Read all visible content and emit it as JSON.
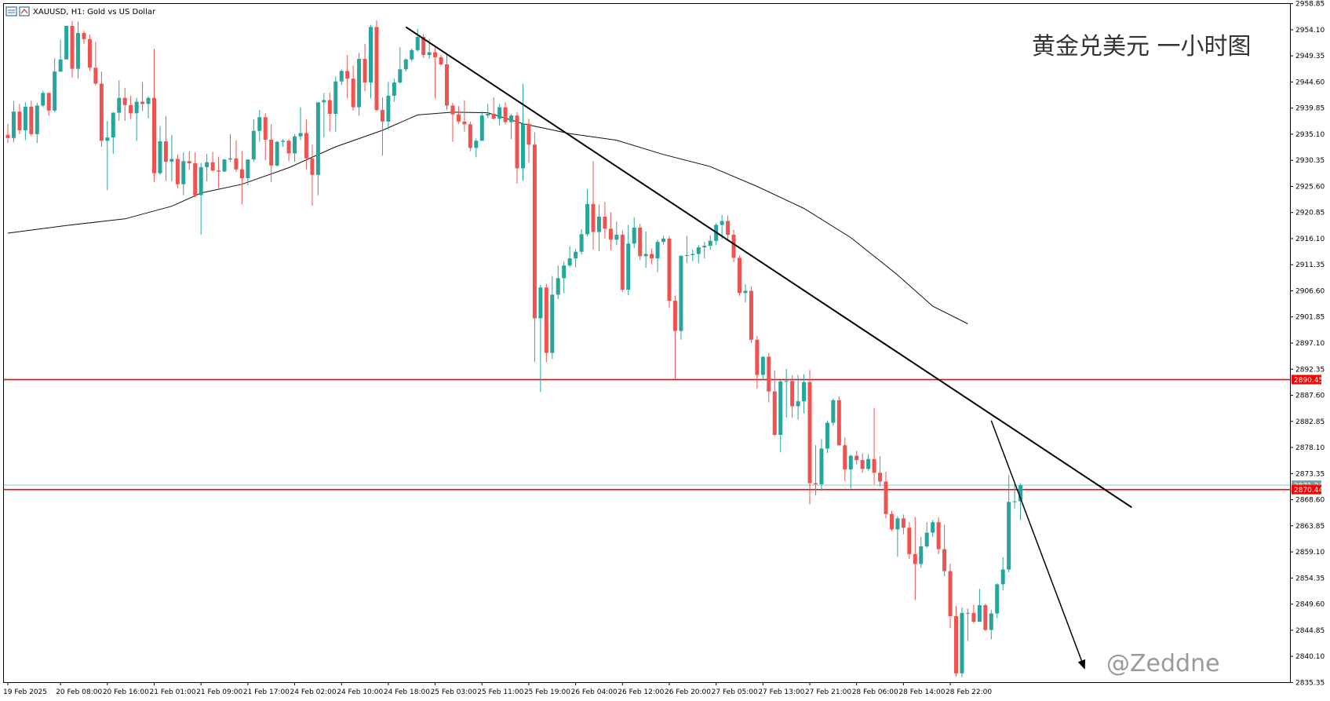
{
  "header": {
    "symbol_line": "XAUUSD, H1:  Gold vs US Dollar"
  },
  "watermark": "@Zeddne",
  "chart_data": {
    "type": "candlestick",
    "title": "黄金兑美元 一小时图",
    "ylim": [
      2835.4,
      2958.8
    ],
    "y_ticks": [
      2958.85,
      2954.1,
      2949.35,
      2944.6,
      2939.85,
      2935.1,
      2930.35,
      2925.6,
      2920.85,
      2916.1,
      2911.35,
      2906.6,
      2901.85,
      2897.1,
      2892.35,
      2887.6,
      2882.85,
      2878.1,
      2873.35,
      2868.6,
      2863.85,
      2859.1,
      2854.35,
      2849.6,
      2844.85,
      2840.1,
      2835.35
    ],
    "x_tick_labels": [
      "19 Feb 2025",
      "20 Feb 08:00",
      "20 Feb 16:00",
      "21 Feb 01:00",
      "21 Feb 09:00",
      "21 Feb 17:00",
      "24 Feb 02:00",
      "24 Feb 10:00",
      "24 Feb 18:00",
      "25 Feb 03:00",
      "25 Feb 11:00",
      "25 Feb 19:00",
      "26 Feb 04:00",
      "26 Feb 12:00",
      "26 Feb 20:00",
      "27 Feb 05:00",
      "27 Feb 13:00",
      "27 Feb 21:00",
      "28 Feb 06:00",
      "28 Feb 14:00",
      "28 Feb 22:00"
    ],
    "x_tick_index": [
      0,
      9,
      17,
      25,
      33,
      41,
      49,
      57,
      65,
      73,
      81,
      89,
      97,
      105,
      113,
      121,
      129,
      137,
      145,
      153,
      161
    ],
    "price_labels": [
      {
        "label": "2890.45",
        "value": 2890.45,
        "color": "#ff0000"
      },
      {
        "label": "2871.24",
        "value": 2871.24,
        "color": "#7fa0a0"
      },
      {
        "label": "2870.44",
        "value": 2870.44,
        "color": "#ff0000"
      }
    ],
    "horizontal_lines": [
      {
        "value": 2890.45,
        "color": "#ff0000"
      },
      {
        "value": 2870.44,
        "color": "#ff0000"
      },
      {
        "value": 2871.24,
        "color": "#9fc0c0"
      }
    ],
    "trendline": {
      "from": {
        "i": 68,
        "v": 2954.6
      },
      "to": {
        "i": 192,
        "v": 2867.2
      }
    },
    "arrow": {
      "from": {
        "i": 168,
        "v": 2883.0
      },
      "to": {
        "i": 184,
        "v": 2837.7
      }
    },
    "ma": [
      {
        "i": 0,
        "v": 2917.1
      },
      {
        "i": 10,
        "v": 2918.5
      },
      {
        "i": 20,
        "v": 2919.7
      },
      {
        "i": 28,
        "v": 2922.0
      },
      {
        "i": 33,
        "v": 2924.4
      },
      {
        "i": 40,
        "v": 2926.0
      },
      {
        "i": 48,
        "v": 2929.0
      },
      {
        "i": 56,
        "v": 2932.8
      },
      {
        "i": 64,
        "v": 2935.8
      },
      {
        "i": 70,
        "v": 2938.6
      },
      {
        "i": 76,
        "v": 2939.1
      },
      {
        "i": 82,
        "v": 2939.0
      },
      {
        "i": 88,
        "v": 2937.0
      },
      {
        "i": 96,
        "v": 2935.2
      },
      {
        "i": 104,
        "v": 2934.0
      },
      {
        "i": 112,
        "v": 2931.4
      },
      {
        "i": 120,
        "v": 2929.2
      },
      {
        "i": 128,
        "v": 2925.6
      },
      {
        "i": 136,
        "v": 2921.6
      },
      {
        "i": 144,
        "v": 2916.3
      },
      {
        "i": 152,
        "v": 2909.5
      },
      {
        "i": 158,
        "v": 2903.8
      },
      {
        "i": 164,
        "v": 2900.6
      }
    ],
    "colors": {
      "bull": "#26a69a",
      "bear": "#ef5350",
      "ma": "#111111",
      "trend": "#000000"
    },
    "candles": [
      [
        2935.0,
        2937.0,
        2933.5,
        2934.4
      ],
      [
        2934.4,
        2941.1,
        2933.6,
        2939.2
      ],
      [
        2939.2,
        2940.6,
        2935.1,
        2935.8
      ],
      [
        2935.8,
        2940.9,
        2934.0,
        2940.1
      ],
      [
        2940.1,
        2941.2,
        2934.7,
        2935.1
      ],
      [
        2935.1,
        2940.8,
        2933.5,
        2940.3
      ],
      [
        2940.3,
        2943.0,
        2940.0,
        2942.6
      ],
      [
        2942.6,
        2942.7,
        2938.5,
        2939.4
      ],
      [
        2939.4,
        2948.9,
        2939.1,
        2946.5
      ],
      [
        2946.5,
        2952.3,
        2946.4,
        2948.7
      ],
      [
        2948.7,
        2954.8,
        2948.7,
        2954.8
      ],
      [
        2954.8,
        2955.7,
        2945.4,
        2947.0
      ],
      [
        2947.0,
        2955.6,
        2945.2,
        2953.5
      ],
      [
        2953.5,
        2953.9,
        2951.5,
        2952.4
      ],
      [
        2952.4,
        2953.2,
        2946.6,
        2947.2
      ],
      [
        2947.2,
        2951.9,
        2944.0,
        2944.3
      ],
      [
        2944.3,
        2946.5,
        2932.8,
        2933.9
      ],
      [
        2933.9,
        2937.5,
        2924.9,
        2934.5
      ],
      [
        2934.5,
        2939.1,
        2931.5,
        2939.0
      ],
      [
        2939.0,
        2944.9,
        2937.5,
        2941.7
      ],
      [
        2941.7,
        2943.5,
        2937.5,
        2940.4
      ],
      [
        2940.4,
        2942.1,
        2937.9,
        2938.9
      ],
      [
        2938.9,
        2941.7,
        2933.9,
        2941.0
      ],
      [
        2941.0,
        2944.6,
        2939.3,
        2940.6
      ],
      [
        2940.6,
        2942.0,
        2938.0,
        2941.7
      ],
      [
        2941.7,
        2950.6,
        2926.4,
        2928.0
      ],
      [
        2928.0,
        2936.6,
        2927.7,
        2933.8
      ],
      [
        2933.8,
        2938.4,
        2926.6,
        2930.1
      ],
      [
        2930.1,
        2934.9,
        2926.5,
        2930.6
      ],
      [
        2930.6,
        2931.4,
        2925.2,
        2926.0
      ],
      [
        2926.0,
        2931.8,
        2924.0,
        2930.2
      ],
      [
        2930.2,
        2932.0,
        2928.6,
        2929.8
      ],
      [
        2929.8,
        2931.8,
        2923.6,
        2924.0
      ],
      [
        2924.0,
        2929.9,
        2916.8,
        2929.1
      ],
      [
        2929.1,
        2931.5,
        2926.5,
        2930.0
      ],
      [
        2930.0,
        2931.9,
        2928.3,
        2928.5
      ],
      [
        2928.5,
        2931.0,
        2925.3,
        2928.3
      ],
      [
        2928.3,
        2930.6,
        2928.2,
        2930.5
      ],
      [
        2930.5,
        2935.1,
        2930.1,
        2930.7
      ],
      [
        2930.7,
        2934.0,
        2928.2,
        2928.7
      ],
      [
        2928.7,
        2932.0,
        2922.3,
        2927.1
      ],
      [
        2927.1,
        2930.2,
        2925.8,
        2930.5
      ],
      [
        2930.5,
        2937.8,
        2930.1,
        2935.7
      ],
      [
        2935.7,
        2939.5,
        2933.7,
        2938.2
      ],
      [
        2938.2,
        2938.9,
        2930.4,
        2934.1
      ],
      [
        2934.1,
        2936.9,
        2926.4,
        2929.4
      ],
      [
        2929.4,
        2933.9,
        2929.2,
        2933.7
      ],
      [
        2933.7,
        2934.2,
        2932.8,
        2933.9
      ],
      [
        2933.9,
        2934.2,
        2930.2,
        2931.6
      ],
      [
        2931.6,
        2935.1,
        2930.1,
        2934.7
      ],
      [
        2934.7,
        2940.0,
        2934.0,
        2935.3
      ],
      [
        2935.3,
        2937.8,
        2928.7,
        2930.7
      ],
      [
        2930.7,
        2933.2,
        2922.1,
        2927.7
      ],
      [
        2927.7,
        2940.9,
        2924.0,
        2940.9
      ],
      [
        2940.9,
        2942.6,
        2934.5,
        2941.3
      ],
      [
        2941.3,
        2942.7,
        2935.6,
        2938.8
      ],
      [
        2938.8,
        2945.6,
        2935.5,
        2944.7
      ],
      [
        2944.7,
        2946.9,
        2944.0,
        2946.6
      ],
      [
        2946.6,
        2949.5,
        2941.7,
        2945.2
      ],
      [
        2945.2,
        2947.6,
        2939.4,
        2940.0
      ],
      [
        2940.0,
        2949.9,
        2938.5,
        2948.8
      ],
      [
        2948.8,
        2951.5,
        2942.9,
        2944.5
      ],
      [
        2944.5,
        2955.0,
        2941.6,
        2954.6
      ],
      [
        2954.6,
        2955.8,
        2939.2,
        2939.5
      ],
      [
        2939.5,
        2941.8,
        2931.2,
        2937.4
      ],
      [
        2937.4,
        2944.6,
        2935.9,
        2942.1
      ],
      [
        2942.1,
        2945.2,
        2941.0,
        2944.5
      ],
      [
        2944.5,
        2950.9,
        2944.3,
        2946.9
      ],
      [
        2946.9,
        2948.9,
        2946.5,
        2948.7
      ],
      [
        2948.7,
        2950.7,
        2948.3,
        2950.4
      ],
      [
        2950.4,
        2954.3,
        2950.1,
        2952.8
      ],
      [
        2952.8,
        2953.3,
        2949.0,
        2949.5
      ],
      [
        2949.5,
        2952.4,
        2948.8,
        2950.0
      ],
      [
        2950.0,
        2951.2,
        2941.6,
        2949.1
      ],
      [
        2949.1,
        2949.5,
        2947.6,
        2947.8
      ],
      [
        2947.8,
        2949.6,
        2939.5,
        2940.3
      ],
      [
        2940.3,
        2940.8,
        2933.7,
        2938.7
      ],
      [
        2938.7,
        2940.2,
        2937.0,
        2937.4
      ],
      [
        2937.4,
        2941.3,
        2935.6,
        2936.9
      ],
      [
        2936.9,
        2937.4,
        2932.0,
        2932.6
      ],
      [
        2932.6,
        2934.3,
        2930.9,
        2933.9
      ],
      [
        2933.9,
        2939.3,
        2934.3,
        2938.5
      ],
      [
        2938.5,
        2940.6,
        2938.1,
        2938.8
      ],
      [
        2938.8,
        2941.8,
        2937.9,
        2937.9
      ],
      [
        2937.9,
        2940.6,
        2936.7,
        2940.0
      ],
      [
        2940.0,
        2940.9,
        2936.9,
        2937.3
      ],
      [
        2937.3,
        2938.8,
        2934.2,
        2938.5
      ],
      [
        2938.5,
        2939.1,
        2926.1,
        2928.9
      ],
      [
        2928.9,
        2944.3,
        2926.6,
        2937.0
      ],
      [
        2937.0,
        2937.9,
        2929.9,
        2933.2
      ],
      [
        2933.2,
        2935.4,
        2893.6,
        2901.6
      ],
      [
        2901.6,
        2907.7,
        2888.2,
        2907.2
      ],
      [
        2907.2,
        2907.9,
        2893.6,
        2895.3
      ],
      [
        2895.3,
        2909.3,
        2894.2,
        2905.9
      ],
      [
        2905.9,
        2911.2,
        2905.1,
        2908.9
      ],
      [
        2908.9,
        2911.9,
        2906.2,
        2911.2
      ],
      [
        2911.2,
        2914.7,
        2910.9,
        2912.5
      ],
      [
        2912.5,
        2914.2,
        2910.9,
        2913.7
      ],
      [
        2913.7,
        2917.8,
        2913.2,
        2916.9
      ],
      [
        2916.9,
        2925.1,
        2916.5,
        2922.4
      ],
      [
        2922.4,
        2930.2,
        2914.1,
        2917.3
      ],
      [
        2917.3,
        2922.3,
        2913.8,
        2920.1
      ],
      [
        2920.1,
        2922.8,
        2916.1,
        2917.9
      ],
      [
        2917.9,
        2920.9,
        2914.0,
        2915.9
      ],
      [
        2915.9,
        2919.2,
        2914.9,
        2916.8
      ],
      [
        2916.8,
        2917.6,
        2906.4,
        2906.8
      ],
      [
        2906.8,
        2918.6,
        2905.8,
        2915.2
      ],
      [
        2915.2,
        2920.0,
        2914.4,
        2918.1
      ],
      [
        2918.1,
        2918.8,
        2912.2,
        2912.9
      ],
      [
        2912.9,
        2917.4,
        2910.8,
        2913.3
      ],
      [
        2913.3,
        2914.3,
        2911.4,
        2912.5
      ],
      [
        2912.5,
        2915.9,
        2910.0,
        2915.5
      ],
      [
        2915.5,
        2916.6,
        2915.0,
        2916.1
      ],
      [
        2916.1,
        2916.6,
        2903.5,
        2904.8
      ],
      [
        2904.8,
        2905.7,
        2890.5,
        2899.3
      ],
      [
        2899.3,
        2912.9,
        2897.7,
        2913.0
      ],
      [
        2913.0,
        2916.6,
        2911.7,
        2913.1
      ],
      [
        2913.1,
        2914.1,
        2912.0,
        2913.3
      ],
      [
        2913.3,
        2914.9,
        2911.6,
        2914.5
      ],
      [
        2914.5,
        2915.5,
        2912.5,
        2914.8
      ],
      [
        2914.8,
        2916.7,
        2914.1,
        2915.7
      ],
      [
        2915.7,
        2918.9,
        2914.9,
        2918.6
      ],
      [
        2918.6,
        2920.4,
        2916.0,
        2919.3
      ],
      [
        2919.3,
        2920.3,
        2915.7,
        2916.8
      ],
      [
        2916.8,
        2917.7,
        2911.8,
        2912.6
      ],
      [
        2912.6,
        2913.0,
        2905.7,
        2906.2
      ],
      [
        2906.2,
        2907.8,
        2904.5,
        2906.6
      ],
      [
        2906.6,
        2907.4,
        2897.1,
        2897.7
      ],
      [
        2897.7,
        2898.4,
        2888.8,
        2891.3
      ],
      [
        2891.3,
        2894.7,
        2890.3,
        2894.6
      ],
      [
        2894.6,
        2895.3,
        2886.3,
        2888.3
      ],
      [
        2888.3,
        2892.1,
        2880.2,
        2880.4
      ],
      [
        2880.4,
        2890.3,
        2877.2,
        2890.1
      ],
      [
        2890.1,
        2892.4,
        2883.5,
        2890.2
      ],
      [
        2890.2,
        2891.2,
        2883.5,
        2885.6
      ],
      [
        2885.6,
        2891.3,
        2883.2,
        2886.5
      ],
      [
        2886.5,
        2891.4,
        2884.3,
        2890.0
      ],
      [
        2890.0,
        2892.2,
        2867.8,
        2871.6
      ],
      [
        2871.6,
        2878.5,
        2869.4,
        2871.4
      ],
      [
        2871.4,
        2879.6,
        2870.2,
        2877.9
      ],
      [
        2877.9,
        2883.0,
        2877.1,
        2882.6
      ],
      [
        2882.6,
        2887.0,
        2882.1,
        2886.7
      ],
      [
        2886.7,
        2887.4,
        2878.4,
        2878.5
      ],
      [
        2878.5,
        2879.9,
        2872.0,
        2874.1
      ],
      [
        2874.1,
        2876.8,
        2870.6,
        2876.6
      ],
      [
        2876.6,
        2877.5,
        2875.0,
        2875.8
      ],
      [
        2875.8,
        2877.0,
        2873.5,
        2874.2
      ],
      [
        2874.2,
        2876.9,
        2873.9,
        2876.0
      ],
      [
        2876.0,
        2885.3,
        2871.4,
        2873.5
      ],
      [
        2873.5,
        2876.5,
        2871.0,
        2871.9
      ],
      [
        2871.9,
        2873.7,
        2865.2,
        2866.0
      ],
      [
        2866.0,
        2866.6,
        2862.9,
        2863.2
      ],
      [
        2863.2,
        2865.6,
        2858.2,
        2865.2
      ],
      [
        2865.2,
        2865.9,
        2862.3,
        2863.5
      ],
      [
        2863.5,
        2864.5,
        2857.8,
        2858.7
      ],
      [
        2858.7,
        2865.5,
        2850.3,
        2856.9
      ],
      [
        2856.9,
        2861.8,
        2856.2,
        2860.1
      ],
      [
        2860.1,
        2864.5,
        2859.8,
        2862.6
      ],
      [
        2862.6,
        2864.9,
        2861.8,
        2864.5
      ],
      [
        2864.5,
        2865.4,
        2858.7,
        2859.6
      ],
      [
        2859.6,
        2864.0,
        2854.7,
        2855.6
      ],
      [
        2855.6,
        2857.0,
        2845.2,
        2847.4
      ],
      [
        2847.4,
        2849.3,
        2836.4,
        2837.0
      ],
      [
        2837.0,
        2849.0,
        2836.3,
        2848.0
      ],
      [
        2848.0,
        2848.8,
        2842.9,
        2848.0
      ],
      [
        2848.0,
        2849.5,
        2846.1,
        2846.4
      ],
      [
        2846.4,
        2852.4,
        2846.4,
        2849.4
      ],
      [
        2849.4,
        2849.7,
        2844.7,
        2844.9
      ],
      [
        2844.9,
        2848.6,
        2843.2,
        2847.9
      ],
      [
        2847.9,
        2853.4,
        2847.1,
        2853.2
      ],
      [
        2853.2,
        2858.1,
        2852.1,
        2855.9
      ],
      [
        2855.9,
        2873.1,
        2855.4,
        2868.2
      ],
      [
        2868.2,
        2871.5,
        2867.0,
        2868.3
      ],
      [
        2868.3,
        2871.6,
        2864.9,
        2871.2
      ]
    ]
  }
}
